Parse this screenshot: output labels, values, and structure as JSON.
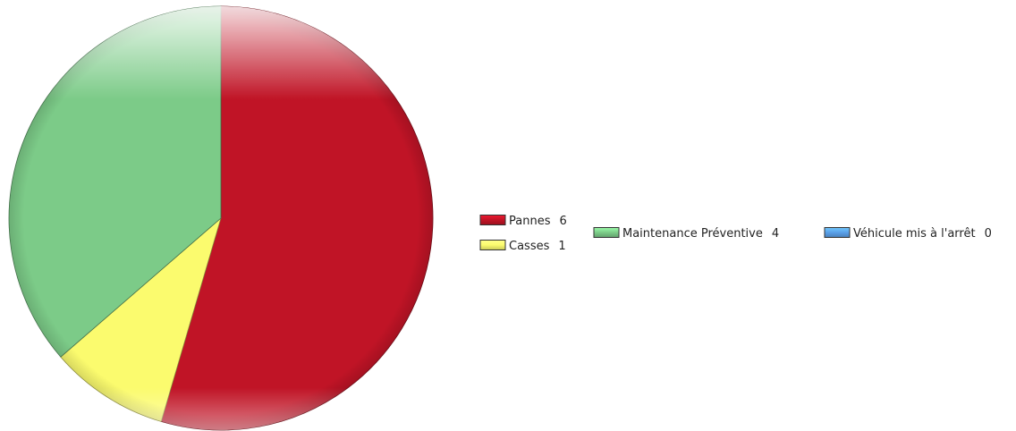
{
  "chart_data": {
    "type": "pie",
    "slices": [
      {
        "label": "Pannes",
        "value": 6,
        "color": "#c01426"
      },
      {
        "label": "Casses",
        "value": 1,
        "color": "#fbfb6e"
      },
      {
        "label": "Maintenance Préventive",
        "value": 4,
        "color": "#7ccb88"
      },
      {
        "label": "Véhicule mis à l'arrêt",
        "value": 0,
        "color": "#5aa0e8"
      }
    ],
    "legend": {
      "placement": "right",
      "layout": [
        {
          "slice": 0,
          "column": 0,
          "row": 0
        },
        {
          "slice": 1,
          "column": 0,
          "row": 1
        },
        {
          "slice": 2,
          "column": 1,
          "row": 0.5
        },
        {
          "slice": 3,
          "column": 2,
          "row": 0.5
        }
      ]
    },
    "start_angle_deg": 0,
    "direction": "clockwise",
    "style": "glossy"
  }
}
